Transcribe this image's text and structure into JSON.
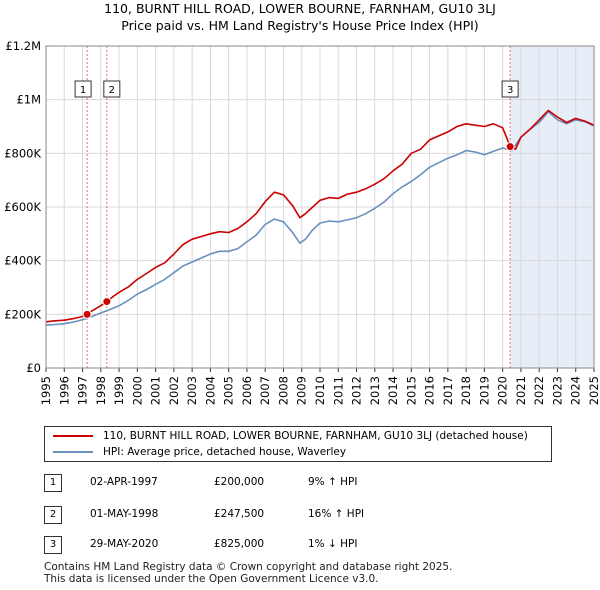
{
  "chart_data": {
    "type": "line",
    "title": "110, BURNT HILL ROAD, LOWER BOURNE, FARNHAM, GU10 3LJ",
    "subtitle": "Price paid vs. HM Land Registry's House Price Index (HPI)",
    "xlim": [
      1995,
      2025
    ],
    "ylim": [
      0,
      1200000
    ],
    "yticks": [
      {
        "value": 0,
        "label": "£0"
      },
      {
        "value": 200000,
        "label": "£200K"
      },
      {
        "value": 400000,
        "label": "£400K"
      },
      {
        "value": 600000,
        "label": "£600K"
      },
      {
        "value": 800000,
        "label": "£800K"
      },
      {
        "value": 1000000,
        "label": "£1M"
      },
      {
        "value": 1200000,
        "label": "£1.2M"
      }
    ],
    "xticks": [
      "1995",
      "1996",
      "1997",
      "1998",
      "1999",
      "2000",
      "2001",
      "2002",
      "2003",
      "2004",
      "2005",
      "2006",
      "2007",
      "2008",
      "2009",
      "2010",
      "2011",
      "2012",
      "2013",
      "2014",
      "2015",
      "2016",
      "2017",
      "2018",
      "2019",
      "2020",
      "2021",
      "2022",
      "2023",
      "2024",
      "2025"
    ],
    "grid": true,
    "series": [
      {
        "name": "110, BURNT HILL ROAD, LOWER BOURNE, FARNHAM, GU10 3LJ (detached house)",
        "color": "#cc0000",
        "x": [
          1995.0,
          1995.5,
          1996.0,
          1996.5,
          1997.0,
          1997.25,
          1997.5,
          1998.0,
          1998.33,
          1998.7,
          1999.0,
          1999.5,
          2000.0,
          2000.5,
          2001.0,
          2001.5,
          2002.0,
          2002.5,
          2003.0,
          2003.5,
          2004.0,
          2004.5,
          2005.0,
          2005.5,
          2006.0,
          2006.5,
          2007.0,
          2007.5,
          2008.0,
          2008.5,
          2008.9,
          2009.2,
          2009.6,
          2010.0,
          2010.5,
          2011.0,
          2011.5,
          2012.0,
          2012.5,
          2013.0,
          2013.5,
          2014.0,
          2014.5,
          2015.0,
          2015.5,
          2016.0,
          2016.5,
          2017.0,
          2017.5,
          2018.0,
          2018.5,
          2019.0,
          2019.5,
          2020.0,
          2020.41,
          2020.7,
          2021.0,
          2021.5,
          2022.0,
          2022.5,
          2023.0,
          2023.5,
          2024.0,
          2024.5,
          2025.0
        ],
        "values": [
          172000,
          176000,
          178000,
          184000,
          192000,
          200000,
          212000,
          232000,
          247500,
          268000,
          282000,
          302000,
          330000,
          352000,
          375000,
          392000,
          425000,
          460000,
          480000,
          490000,
          500000,
          508000,
          505000,
          520000,
          545000,
          575000,
          620000,
          655000,
          645000,
          605000,
          560000,
          575000,
          600000,
          625000,
          635000,
          632000,
          648000,
          655000,
          668000,
          685000,
          705000,
          735000,
          760000,
          800000,
          815000,
          850000,
          865000,
          880000,
          900000,
          910000,
          905000,
          900000,
          910000,
          895000,
          825000,
          815000,
          860000,
          890000,
          925000,
          960000,
          935000,
          915000,
          930000,
          920000,
          905000
        ]
      },
      {
        "name": "HPI: Average price, detached house, Waverley",
        "color": "#6b8fbf",
        "x": [
          1995.0,
          1995.5,
          1996.0,
          1996.5,
          1997.0,
          1997.5,
          1998.0,
          1998.5,
          1999.0,
          1999.5,
          2000.0,
          2000.5,
          2001.0,
          2001.5,
          2002.0,
          2002.5,
          2003.0,
          2003.5,
          2004.0,
          2004.5,
          2005.0,
          2005.5,
          2006.0,
          2006.5,
          2007.0,
          2007.5,
          2008.0,
          2008.5,
          2008.9,
          2009.2,
          2009.6,
          2010.0,
          2010.5,
          2011.0,
          2011.5,
          2012.0,
          2012.5,
          2013.0,
          2013.5,
          2014.0,
          2014.5,
          2015.0,
          2015.5,
          2016.0,
          2016.5,
          2017.0,
          2017.5,
          2018.0,
          2018.5,
          2019.0,
          2019.5,
          2020.0,
          2020.5,
          2021.0,
          2021.5,
          2022.0,
          2022.5,
          2023.0,
          2023.5,
          2024.0,
          2024.5,
          2025.0
        ],
        "values": [
          160000,
          162000,
          165000,
          171000,
          180000,
          192000,
          205000,
          218000,
          232000,
          252000,
          275000,
          292000,
          312000,
          330000,
          355000,
          380000,
          395000,
          410000,
          425000,
          435000,
          435000,
          445000,
          470000,
          495000,
          535000,
          555000,
          545000,
          505000,
          465000,
          480000,
          515000,
          540000,
          548000,
          545000,
          552000,
          560000,
          575000,
          595000,
          618000,
          650000,
          675000,
          695000,
          720000,
          748000,
          765000,
          782000,
          795000,
          810000,
          805000,
          795000,
          808000,
          820000,
          810000,
          860000,
          890000,
          915000,
          955000,
          925000,
          910000,
          925000,
          918000,
          902000
        ]
      }
    ],
    "sales": [
      {
        "id": "1",
        "x": 1997.25,
        "value": 200000
      },
      {
        "id": "2",
        "x": 1998.33,
        "value": 247500
      },
      {
        "id": "3",
        "x": 2020.41,
        "value": 825000
      }
    ]
  },
  "legend": {
    "property_label": "110, BURNT HILL ROAD, LOWER BOURNE, FARNHAM, GU10 3LJ (detached house)",
    "hpi_label": "HPI: Average price, detached house, Waverley"
  },
  "transactions": [
    {
      "id": "1",
      "date": "02-APR-1997",
      "price": "£200,000",
      "hpi": "9% ↑ HPI"
    },
    {
      "id": "2",
      "date": "01-MAY-1998",
      "price": "£247,500",
      "hpi": "16% ↑ HPI"
    },
    {
      "id": "3",
      "date": "29-MAY-2020",
      "price": "£825,000",
      "hpi": "1% ↓ HPI"
    }
  ],
  "footer": {
    "line1": "Contains HM Land Registry data © Crown copyright and database right 2025.",
    "line2": "This data is licensed under the Open Government Licence v3.0."
  },
  "colors": {
    "property": "#cc0000",
    "hpi": "#6b8fbf",
    "shade": "#e8eef8",
    "vline": "#e07070",
    "grid": "#d9d9d9"
  }
}
